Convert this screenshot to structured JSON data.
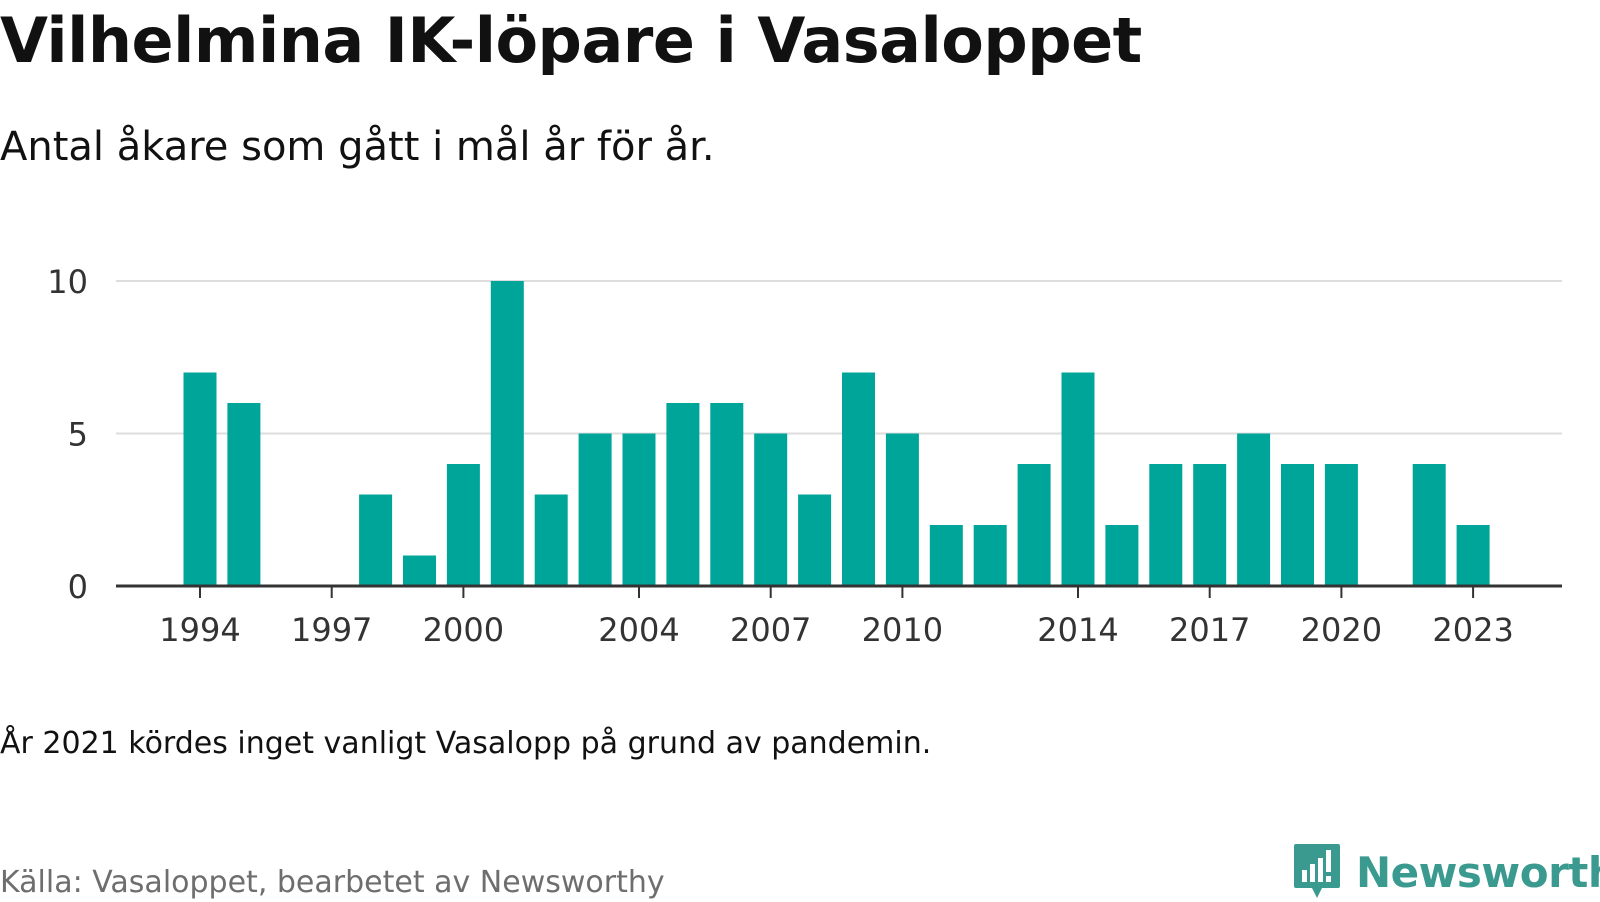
{
  "header": {
    "title": "Vilhelmina IK-löpare i Vasaloppet",
    "subtitle": "Antal åkare som gått i mål år för år."
  },
  "footer": {
    "note": "År 2021 kördes inget vanligt Vasalopp på grund av pandemin.",
    "source": "Källa: Vasaloppet, bearbetet av Newsworthy",
    "brand_name": "Newsworthy"
  },
  "colors": {
    "bar": "#00a59a",
    "grid": "#dddddd",
    "axis": "#333333",
    "brand": "#3a9a8f"
  },
  "icons": [
    "newsworthy-logo-icon"
  ],
  "chart_data": {
    "type": "bar",
    "x": [
      1994,
      1995,
      1996,
      1997,
      1998,
      1999,
      2000,
      2001,
      2002,
      2003,
      2004,
      2005,
      2006,
      2007,
      2008,
      2009,
      2010,
      2011,
      2012,
      2013,
      2014,
      2015,
      2016,
      2017,
      2018,
      2019,
      2020,
      2021,
      2022,
      2023
    ],
    "values": [
      7,
      6,
      0,
      0,
      3,
      1,
      4,
      10,
      3,
      5,
      5,
      6,
      6,
      5,
      3,
      7,
      5,
      2,
      2,
      4,
      7,
      2,
      4,
      4,
      5,
      4,
      4,
      0,
      4,
      2
    ],
    "xticks": [
      1994,
      1997,
      2000,
      2004,
      2007,
      2010,
      2014,
      2017,
      2020,
      2023
    ],
    "yticks": [
      0,
      5,
      10
    ],
    "ylim": [
      0,
      10
    ],
    "grid": true,
    "legend": "none",
    "xlabel": "",
    "ylabel": ""
  }
}
